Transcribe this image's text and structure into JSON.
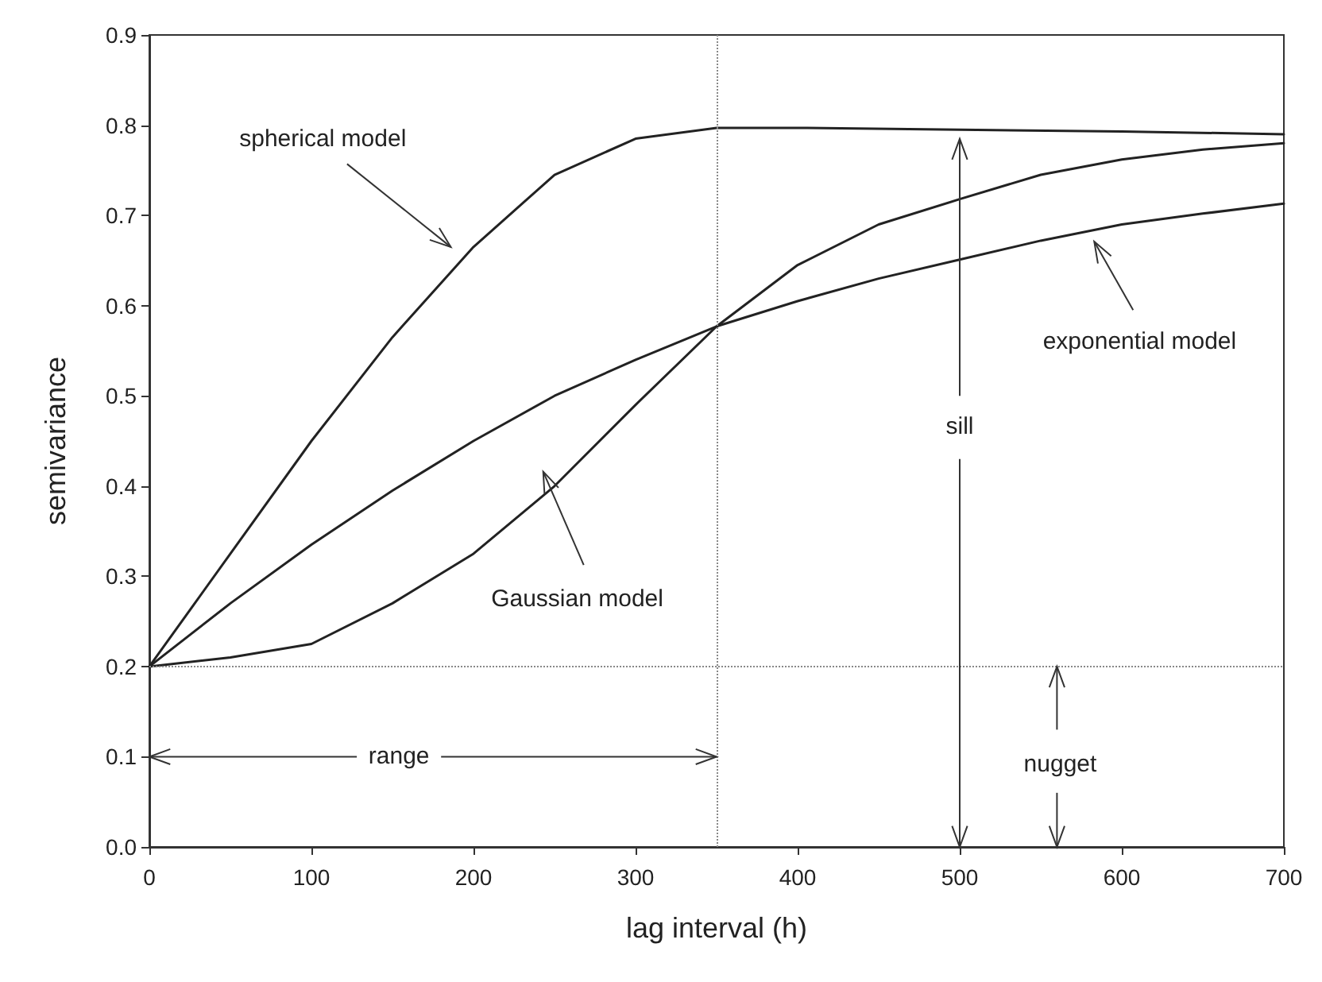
{
  "chart_data": {
    "type": "line",
    "xlabel": "lag interval (h)",
    "ylabel": "semivariance",
    "series": [
      {
        "color": "#222222",
        "x": [
          0,
          50,
          100,
          150,
          200,
          250,
          300,
          350,
          400,
          500,
          600,
          700
        ],
        "values": [
          0.2,
          0.325,
          0.45,
          0.565,
          0.665,
          0.745,
          0.785,
          0.797,
          0.797,
          0.795,
          0.793,
          0.79
        ]
      },
      {
        "color": "#222222",
        "x": [
          0,
          50,
          100,
          150,
          200,
          250,
          300,
          350,
          400,
          450,
          500,
          550,
          600,
          650,
          700
        ],
        "values": [
          0.2,
          0.27,
          0.335,
          0.395,
          0.45,
          0.5,
          0.54,
          0.577,
          0.605,
          0.63,
          0.651,
          0.672,
          0.69,
          0.702,
          0.713
        ]
      },
      {
        "color": "#222222",
        "x": [
          0,
          50,
          100,
          150,
          200,
          250,
          300,
          350,
          400,
          450,
          500,
          550,
          600,
          650,
          700
        ],
        "values": [
          0.2,
          0.21,
          0.225,
          0.27,
          0.325,
          0.4,
          0.49,
          0.577,
          0.645,
          0.69,
          0.718,
          0.745,
          0.762,
          0.773,
          0.78
        ]
      }
    ],
    "xlim": [
      0,
      700
    ],
    "xticks": [
      0,
      100,
      200,
      300,
      400,
      500,
      600,
      700
    ],
    "ylim": [
      0,
      0.9
    ],
    "yticks": [
      {
        "value": 0,
        "label": "0.0"
      },
      0.1,
      0.2,
      0.3,
      0.4,
      0.5,
      0.6,
      0.7,
      0.8,
      0.9
    ],
    "marker": "none",
    "line_style": "solid",
    "ref_lines": [
      {
        "axis": "x",
        "value": 350,
        "color": "#888888",
        "line_style": "dotted"
      },
      {
        "axis": "y",
        "value": 0.2,
        "color": "#888888",
        "line_style": "dotted"
      }
    ],
    "annotations": [
      "spherical model",
      "exponential model",
      "Gaussian model",
      "sill",
      {
        "text": "range",
        "x": 350,
        "y": 0.1
      },
      "nugget"
    ]
  }
}
